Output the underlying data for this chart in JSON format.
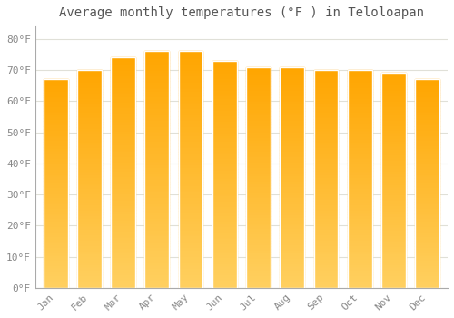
{
  "title": "Average monthly temperatures (°F ) in Teloloapan",
  "months": [
    "Jan",
    "Feb",
    "Mar",
    "Apr",
    "May",
    "Jun",
    "Jul",
    "Aug",
    "Sep",
    "Oct",
    "Nov",
    "Dec"
  ],
  "values": [
    67,
    70,
    74,
    76,
    76,
    73,
    71,
    71,
    70,
    70,
    69,
    67
  ],
  "bar_color_top": "#FFA500",
  "bar_color_bottom": "#FFD060",
  "background_color": "#FFFFFF",
  "grid_color": "#E0E0D8",
  "yticks": [
    0,
    10,
    20,
    30,
    40,
    50,
    60,
    70,
    80
  ],
  "ylim": [
    0,
    84
  ],
  "title_fontsize": 10,
  "tick_fontsize": 8,
  "tick_color": "#888888",
  "title_color": "#555555"
}
